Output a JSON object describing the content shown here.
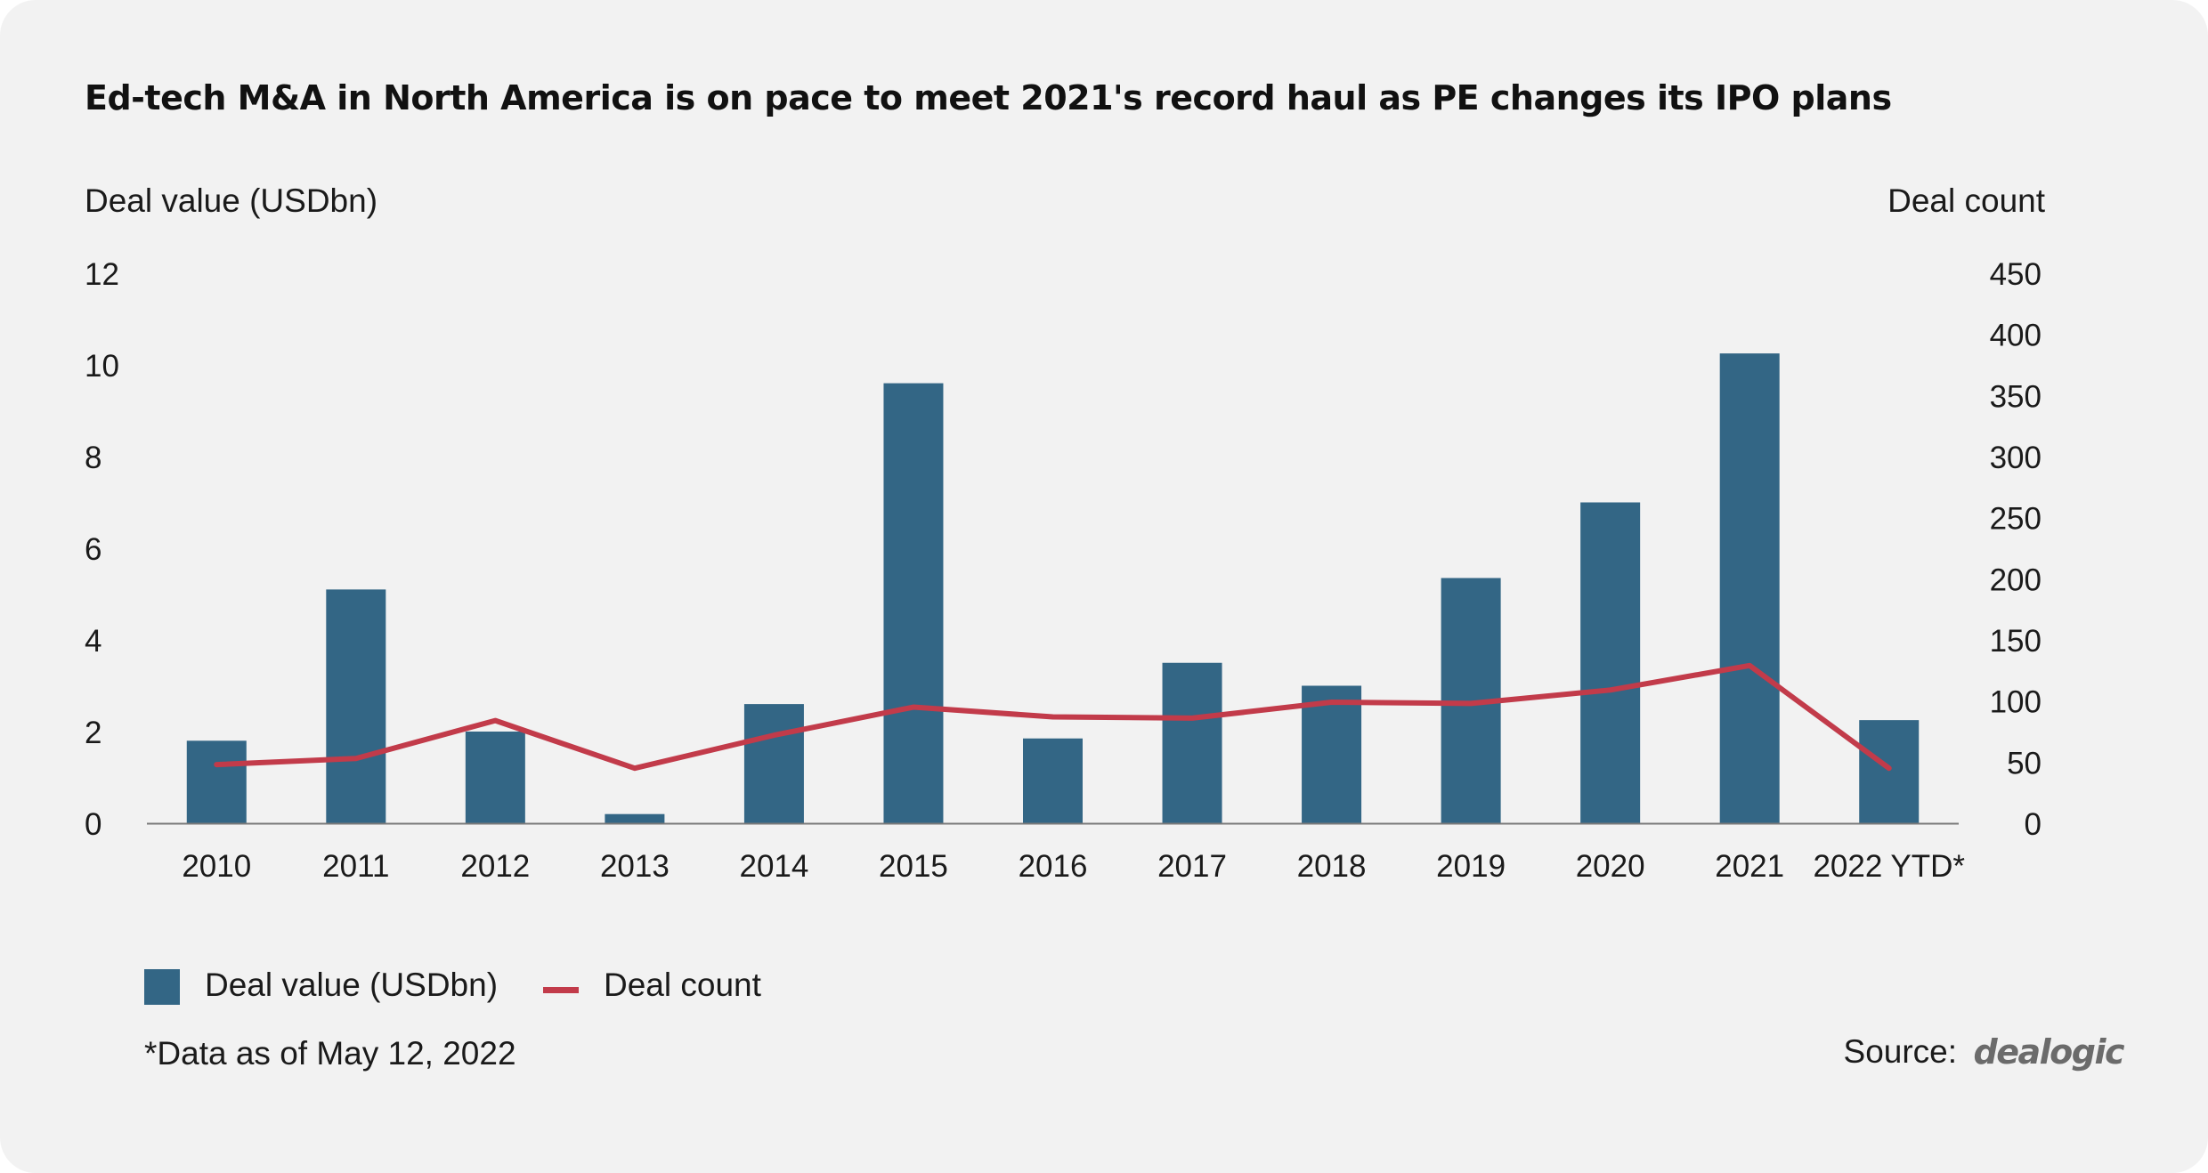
{
  "chart_data": {
    "type": "bar",
    "title": "Ed-tech  M&A in North America is on pace to meet 2021's record haul as PE changes its IPO plans",
    "categories": [
      "2010",
      "2011",
      "2012",
      "2013",
      "2014",
      "2015",
      "2016",
      "2017",
      "2018",
      "2019",
      "2020",
      "2021",
      "2022 YTD*"
    ],
    "series": [
      {
        "name": "Deal value (USDbn)",
        "type": "bar",
        "axis": "left",
        "color": "#336685",
        "values": [
          1.8,
          5.1,
          2.0,
          0.2,
          2.6,
          9.6,
          1.85,
          3.5,
          3.0,
          5.35,
          7.0,
          10.25,
          2.25
        ]
      },
      {
        "name": "Deal count",
        "type": "line",
        "axis": "right",
        "color": "#c23b4a",
        "values": [
          48,
          53,
          84,
          45,
          72,
          95,
          87,
          86,
          99,
          98,
          109,
          129,
          45
        ]
      }
    ],
    "ylabel": "Deal value (USDbn)",
    "ylim": [
      0,
      12
    ],
    "yticks": [
      "0",
      "2",
      "4",
      "6",
      "8",
      "10",
      "12"
    ],
    "y2label": "Deal count",
    "y2lim": [
      0,
      450
    ],
    "y2ticks": [
      "0",
      "50",
      "100",
      "150",
      "200",
      "250",
      "300",
      "350",
      "400",
      "450"
    ],
    "grid": false,
    "legend_position": "bottom-left"
  },
  "legend": {
    "bar_label": "Deal value (USDbn)",
    "line_label": "Deal count"
  },
  "footnote": "*Data as of May 12, 2022",
  "source_label": "Source:",
  "source_logo": "dealogic",
  "colors": {
    "background": "#f2f2f2",
    "bar": "#336685",
    "line": "#c23b4a"
  }
}
